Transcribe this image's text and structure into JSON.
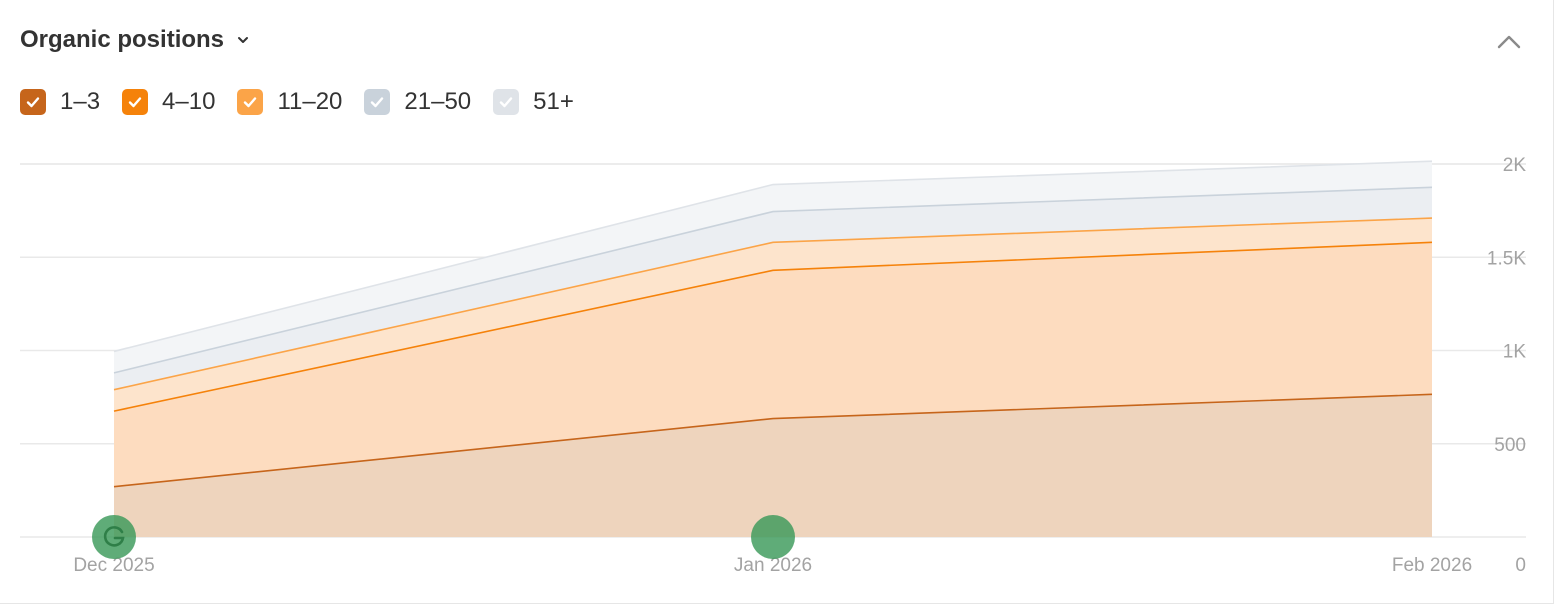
{
  "widget": {
    "title": "Organic positions",
    "title_icon": "chevron-down-icon",
    "collapse_icon": "chevron-up-icon"
  },
  "legend": [
    {
      "label": "1–3",
      "color": "#c6651b",
      "checked": true
    },
    {
      "label": "4–10",
      "color": "#f5820a",
      "checked": true
    },
    {
      "label": "11–20",
      "color": "#fba448",
      "checked": true
    },
    {
      "label": "21–50",
      "color": "#c9d2db",
      "checked": true
    },
    {
      "label": "51+",
      "color": "#dfe3e8",
      "checked": true
    }
  ],
  "chart_data": {
    "type": "area",
    "stacked": true,
    "x": [
      "Dec 2025",
      "Jan 2026",
      "Feb 2026"
    ],
    "series": [
      {
        "name": "1–3",
        "values": [
          270,
          635,
          765
        ],
        "color": "#c6651b",
        "fill": "#eed4bd"
      },
      {
        "name": "4–10",
        "values": [
          405,
          795,
          815
        ],
        "color": "#f5820a",
        "fill": "#fddcbf"
      },
      {
        "name": "11–20",
        "values": [
          115,
          150,
          130
        ],
        "color": "#fba448",
        "fill": "#fde4cc"
      },
      {
        "name": "21–50",
        "values": [
          90,
          165,
          165
        ],
        "color": "#c9d2db",
        "fill": "#ebeef2"
      },
      {
        "name": "51+",
        "values": [
          115,
          145,
          140
        ],
        "color": "#dfe3e8",
        "fill": "#f3f5f7"
      }
    ],
    "yticks": [
      0,
      500,
      1000,
      1500,
      2000
    ],
    "ytick_labels": [
      "0",
      "500",
      "1K",
      "1.5K",
      "2K"
    ],
    "ylim": [
      0,
      2000
    ],
    "grid": true,
    "annotations": [
      {
        "x": "Dec 2025",
        "icon": "google-icon",
        "color": "#3c9a5a"
      },
      {
        "x": "Jan 2026",
        "icon": "",
        "color": "#3c9a5a"
      }
    ]
  }
}
